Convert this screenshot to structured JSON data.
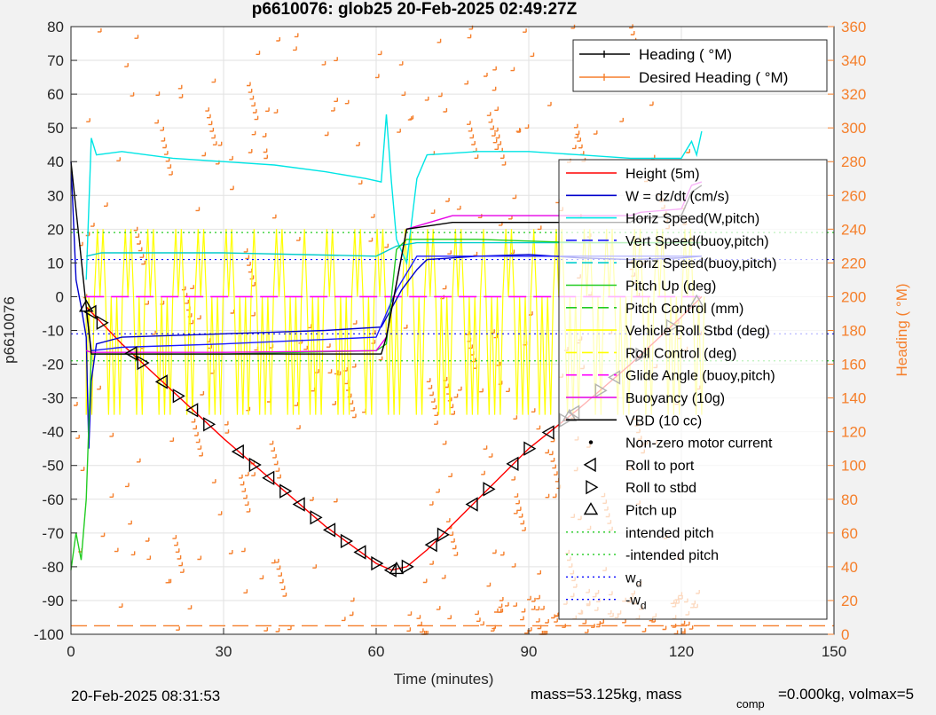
{
  "figure": {
    "title": "p6610076: glob25 20-Feb-2025 02:49:27Z",
    "footer_left": "20-Feb-2025 08:31:53",
    "footer_right_a": "mass=53.125kg, mass",
    "footer_right_sub": "comp",
    "footer_right_b": "=0.000kg, volmax=5"
  },
  "chart_data": {
    "type": "line",
    "xlabel": "Time (minutes)",
    "ylabel": "p6610076",
    "ylabel_right": "Heading ( °M)",
    "xlim": [
      0,
      150
    ],
    "ylim": [
      -100,
      80
    ],
    "ylim_right": [
      0,
      360
    ],
    "x_ticks": [
      "0",
      "30",
      "60",
      "90",
      "120",
      "150"
    ],
    "y_ticks": [
      "80",
      "70",
      "60",
      "50",
      "40",
      "30",
      "20",
      "10",
      "0",
      "-10",
      "-20",
      "-30",
      "-40",
      "-50",
      "-60",
      "-70",
      "-80",
      "-90",
      "-100"
    ],
    "y_ticks_right": [
      "360",
      "340",
      "320",
      "300",
      "280",
      "260",
      "240",
      "220",
      "200",
      "180",
      "160",
      "140",
      "120",
      "100",
      "80",
      "60",
      "40",
      "20",
      "0"
    ],
    "grid": true,
    "legend_heading": {
      "placement": "top-right",
      "entries": [
        "Heading ( °M)",
        "Desired Heading ( °M)"
      ]
    },
    "legend_main": {
      "placement": "right",
      "entries": [
        {
          "label": "Height (5m)",
          "color": "#ff0000",
          "style": "solid"
        },
        {
          "label": "W = dz/dt (cm/s)",
          "color": "#0000cc",
          "style": "solid"
        },
        {
          "label": "Horiz Speed(W,pitch)",
          "color": "#00e5e5",
          "style": "solid"
        },
        {
          "label": "Vert Speed(buoy,pitch)",
          "color": "#1a1aff",
          "style": "dash"
        },
        {
          "label": "Horiz Speed(buoy,pitch)",
          "color": "#00cccc",
          "style": "dash"
        },
        {
          "label": "Pitch Up (deg)",
          "color": "#22cc22",
          "style": "solid"
        },
        {
          "label": "Pitch Control (mm)",
          "color": "#22cc22",
          "style": "dash"
        },
        {
          "label": "Vehicle Roll Stbd (deg)",
          "color": "#ffff00",
          "style": "solid"
        },
        {
          "label": "Roll Control (deg)",
          "color": "#ffff00",
          "style": "dash"
        },
        {
          "label": "Glide Angle (buoy,pitch)",
          "color": "#ff00ff",
          "style": "dash"
        },
        {
          "label": "Buoyancy (10g)",
          "color": "#e600e6",
          "style": "solid"
        },
        {
          "label": "VBD (10 cc)",
          "color": "#000000",
          "style": "solid"
        },
        {
          "label": "Non-zero motor current",
          "color": "#000000",
          "style": "dot-marker"
        },
        {
          "label": "Roll to port",
          "color": "#000000",
          "style": "tri-left"
        },
        {
          "label": "Roll to stbd",
          "color": "#000000",
          "style": "tri-right"
        },
        {
          "label": "Pitch up",
          "color": "#000000",
          "style": "tri-up"
        },
        {
          "label": "intended pitch",
          "color": "#22cc22",
          "style": "dot"
        },
        {
          "label": "-intended pitch",
          "color": "#22cc22",
          "style": "dot"
        },
        {
          "label": "w",
          "sub": "d",
          "color": "#0000ff",
          "style": "dot"
        },
        {
          "label": "-w",
          "sub": "d",
          "color": "#0000ff",
          "style": "dot"
        }
      ]
    },
    "series": [
      {
        "name": "Height (5m)",
        "color": "#ff0000",
        "points": [
          [
            3,
            -3
          ],
          [
            10,
            -14
          ],
          [
            20,
            -28
          ],
          [
            30,
            -42
          ],
          [
            40,
            -55
          ],
          [
            50,
            -68
          ],
          [
            60,
            -79
          ],
          [
            63,
            -81
          ],
          [
            66,
            -80
          ],
          [
            70,
            -75
          ],
          [
            80,
            -60
          ],
          [
            90,
            -45
          ],
          [
            100,
            -33
          ],
          [
            110,
            -20
          ],
          [
            120,
            -6
          ],
          [
            124,
            0
          ]
        ]
      },
      {
        "name": "W = dz/dt (cm/s)",
        "color": "#0000cc",
        "points": [
          [
            0,
            40
          ],
          [
            1,
            5
          ],
          [
            2,
            -3
          ],
          [
            3,
            -12
          ],
          [
            3.5,
            -45
          ],
          [
            4,
            -25
          ],
          [
            5,
            -14
          ],
          [
            10,
            -12
          ],
          [
            20,
            -11.5
          ],
          [
            30,
            -11
          ],
          [
            40,
            -10.5
          ],
          [
            50,
            -10
          ],
          [
            61,
            -9
          ],
          [
            65,
            2
          ],
          [
            68,
            8
          ],
          [
            70,
            11
          ],
          [
            80,
            12
          ],
          [
            90,
            12.5
          ],
          [
            100,
            11.5
          ],
          [
            110,
            11
          ],
          [
            120,
            11.5
          ],
          [
            124,
            12
          ]
        ]
      },
      {
        "name": "Horiz Speed(W,pitch)",
        "color": "#00e5e5",
        "points": [
          [
            3,
            5
          ],
          [
            4,
            47
          ],
          [
            5,
            42
          ],
          [
            10,
            43
          ],
          [
            20,
            41
          ],
          [
            30,
            40
          ],
          [
            40,
            39
          ],
          [
            50,
            37
          ],
          [
            58,
            35
          ],
          [
            61,
            34
          ],
          [
            62,
            54
          ],
          [
            63,
            34
          ],
          [
            64,
            17
          ],
          [
            66,
            10
          ],
          [
            68,
            35
          ],
          [
            70,
            42
          ],
          [
            80,
            43
          ],
          [
            90,
            43
          ],
          [
            100,
            42
          ],
          [
            110,
            41
          ],
          [
            120,
            41
          ],
          [
            122,
            46
          ],
          [
            123,
            42
          ],
          [
            124,
            49
          ]
        ]
      },
      {
        "name": "Vert Speed(buoy,pitch)",
        "color": "#1a1aff",
        "points": [
          [
            3,
            -4
          ],
          [
            4,
            -16
          ],
          [
            10,
            -15
          ],
          [
            30,
            -14
          ],
          [
            60,
            -12
          ],
          [
            64,
            2
          ],
          [
            68,
            12
          ],
          [
            80,
            12
          ],
          [
            100,
            12
          ],
          [
            124,
            12
          ]
        ]
      },
      {
        "name": "Horiz Speed(buoy,pitch)",
        "color": "#00cccc",
        "points": [
          [
            3,
            12
          ],
          [
            6,
            13
          ],
          [
            30,
            13
          ],
          [
            60,
            12
          ],
          [
            64,
            15
          ],
          [
            68,
            16
          ],
          [
            100,
            16
          ],
          [
            124,
            16
          ]
        ]
      },
      {
        "name": "Pitch Up (deg)",
        "color": "#22cc22",
        "points": [
          [
            0,
            -81
          ],
          [
            1,
            -70
          ],
          [
            2,
            -78
          ],
          [
            3,
            -60
          ],
          [
            4,
            -17
          ],
          [
            10,
            -17
          ],
          [
            30,
            -17
          ],
          [
            60,
            -16
          ],
          [
            62,
            -14
          ],
          [
            64,
            14
          ],
          [
            66,
            17
          ],
          [
            80,
            17
          ],
          [
            100,
            16
          ],
          [
            124,
            16
          ]
        ]
      },
      {
        "name": "Buoyancy (10g)",
        "color": "#e600e6",
        "points": [
          [
            3,
            -16
          ],
          [
            4,
            -16.5
          ],
          [
            30,
            -16.5
          ],
          [
            60,
            -16
          ],
          [
            62,
            -12
          ],
          [
            66,
            20
          ],
          [
            75,
            24
          ],
          [
            100,
            24
          ],
          [
            110,
            24
          ],
          [
            112,
            25
          ],
          [
            120,
            26
          ],
          [
            122,
            33
          ],
          [
            124,
            34
          ]
        ]
      },
      {
        "name": "VBD (10 cc)",
        "color": "#000000",
        "points": [
          [
            0,
            40
          ],
          [
            3,
            -3
          ],
          [
            4,
            -17
          ],
          [
            30,
            -17
          ],
          [
            61,
            -17
          ],
          [
            62,
            -12
          ],
          [
            66,
            20
          ],
          [
            75,
            22
          ],
          [
            100,
            22
          ],
          [
            110,
            22
          ],
          [
            111,
            23
          ],
          [
            120,
            24
          ],
          [
            122,
            31
          ],
          [
            124,
            33
          ]
        ]
      }
    ],
    "reference_lines": [
      {
        "name": "intended pitch",
        "y": 19,
        "color": "#22cc22"
      },
      {
        "name": "-intended pitch",
        "y": -19,
        "color": "#22cc22"
      },
      {
        "name": "w_d",
        "y": 11,
        "color": "#0000ff"
      },
      {
        "name": "-w_d",
        "y": -11,
        "color": "#0000ff"
      }
    ],
    "roll_to_port_x": [
      4,
      12,
      18,
      24,
      33,
      39,
      45,
      51,
      57,
      63,
      71,
      79,
      87,
      94,
      99,
      107
    ],
    "roll_to_stbd_x": [
      6,
      14,
      21,
      27,
      36,
      42,
      48,
      54,
      60,
      66,
      73,
      82,
      90,
      97,
      104,
      112,
      118
    ],
    "pitch_up_x": [
      3,
      64,
      98,
      123
    ]
  }
}
